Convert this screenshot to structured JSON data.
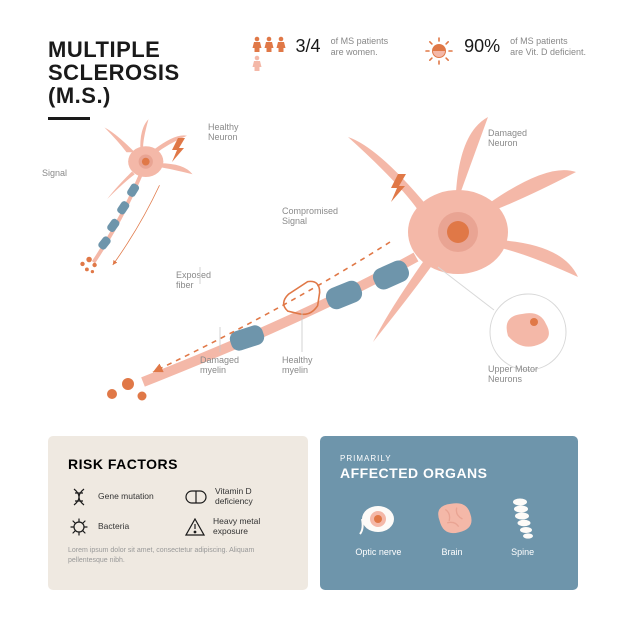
{
  "title_l1": "MULTIPLE",
  "title_l2": "SCLEROSIS",
  "title_l3": "(M.S.)",
  "stats": {
    "women": {
      "value": "3/4",
      "line1": "of MS patients",
      "line2": "are women."
    },
    "vitd": {
      "value": "90%",
      "line1": "of MS patients",
      "line2": "are Vit. D deficient."
    }
  },
  "labels": {
    "healthy_neuron": "Healthy\nNeuron",
    "damaged_neuron": "Damaged\nNeuron",
    "signal": "Signal",
    "compromised_signal": "Compromised\nSignal",
    "exposed_fiber": "Exposed\nfiber",
    "damaged_myelin": "Damaged\nmyelin",
    "healthy_myelin": "Healthy\nmyelin",
    "upper_motor": "Upper Motor\nNeurons"
  },
  "risk": {
    "heading": "RISK FACTORS",
    "items": {
      "gene": "Gene mutation",
      "vitd": "Vitamin D deficiency",
      "bacteria": "Bacteria",
      "metal": "Heavy metal exposure"
    },
    "lorem": "Lorem ipsum dolor sit amet, consectetur adipiscing. Aliquam pellentesque nibh."
  },
  "organs": {
    "sub": "PRIMARILY",
    "heading": "AFFECTED ORGANS",
    "items": {
      "optic": "Optic nerve",
      "brain": "Brain",
      "spine": "Spine"
    }
  },
  "colors": {
    "pink": "#f4b8a8",
    "pink_dark": "#e9a493",
    "orange": "#e07847",
    "blue": "#6e95ab",
    "blue_dark": "#5a7f95",
    "beige": "#efe9e1",
    "text": "#1a1a1a",
    "muted": "#8a8a8a"
  },
  "type": "infographic"
}
